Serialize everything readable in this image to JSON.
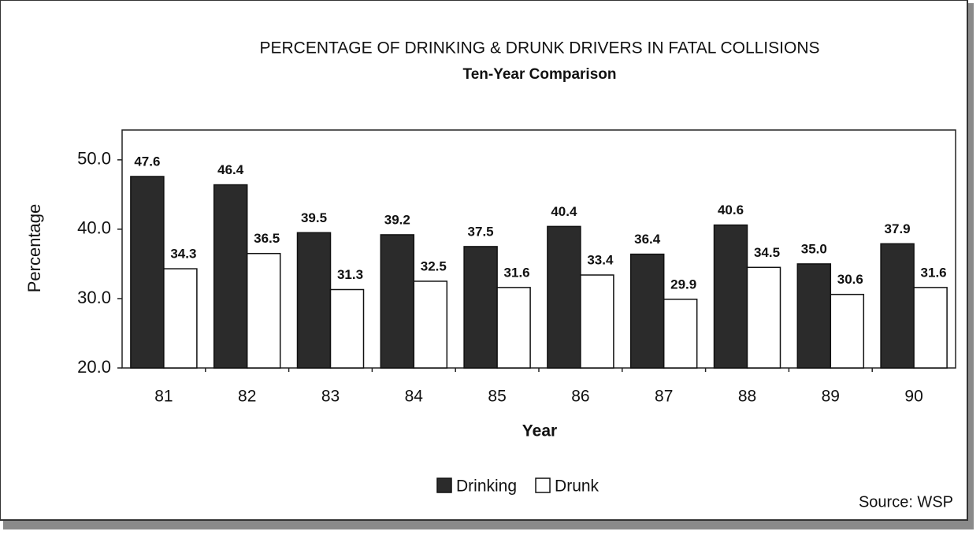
{
  "chart_data": {
    "type": "bar",
    "title": "PERCENTAGE OF DRINKING & DRUNK DRIVERS IN FATAL COLLISIONS",
    "subtitle": "Ten-Year Comparison",
    "x_label": "Year",
    "y_label": "Percentage",
    "source": "Source: WSP",
    "categories": [
      "81",
      "82",
      "83",
      "84",
      "85",
      "86",
      "87",
      "88",
      "89",
      "90"
    ],
    "series": [
      {
        "name": "Drinking",
        "color": "#2b2b2b",
        "values": [
          47.6,
          46.4,
          39.5,
          39.2,
          37.5,
          40.4,
          36.4,
          40.6,
          35.0,
          37.9
        ],
        "value_labels": [
          "47.6",
          "46.4",
          "39.5",
          "39.2",
          "37.5",
          "40.4",
          "36.4",
          "40.6",
          "35.0",
          "37.9"
        ]
      },
      {
        "name": "Drunk",
        "color": "#ffffff",
        "values": [
          34.3,
          36.5,
          31.3,
          32.5,
          31.6,
          33.4,
          29.9,
          34.5,
          30.6,
          31.6
        ],
        "value_labels": [
          "34.3",
          "36.5",
          "31.3",
          "32.5",
          "31.6",
          "33.4",
          "29.9",
          "34.5",
          "30.6",
          "31.6"
        ]
      }
    ],
    "ylim": [
      20,
      54.3
    ],
    "yticks": [
      {
        "value": 20,
        "label": "20.0"
      },
      {
        "value": 30,
        "label": "30.0"
      },
      {
        "value": 40,
        "label": "40.0"
      },
      {
        "value": 50,
        "label": "50.0"
      }
    ],
    "legend": "bottom"
  }
}
